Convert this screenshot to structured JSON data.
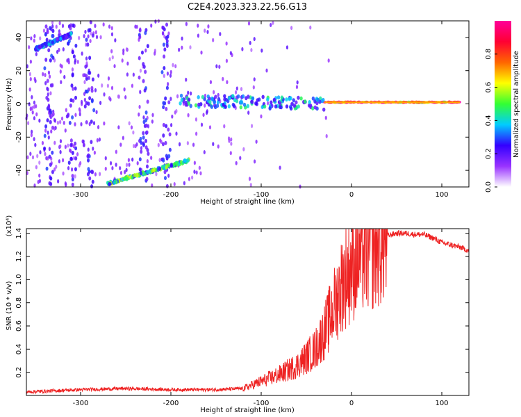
{
  "title": "C2E4.2023.323.22.56.G13",
  "chart_data": [
    {
      "type": "heatmap",
      "title": "C2E4.2023.323.22.56.G13",
      "xlabel": "Height of straight line (km)",
      "ylabel": "Frequency (Hz)",
      "xlim": [
        -360,
        130
      ],
      "ylim": [
        -50,
        50
      ],
      "x_ticks": [
        -300,
        -200,
        -100,
        0,
        100
      ],
      "y_ticks": [
        -40,
        -20,
        0,
        20,
        40
      ],
      "colorbar": {
        "label": "Normalized spectral amplitude",
        "range": [
          0.0,
          1.0
        ],
        "ticks": [
          0.0,
          0.2,
          0.4,
          0.6,
          0.8
        ],
        "colors": [
          "#ffffff",
          "#9933ff",
          "#3300ff",
          "#00ccff",
          "#33ff33",
          "#ffff00",
          "#ff6600",
          "#ff0033",
          "#ff0099"
        ]
      },
      "features": [
        {
          "name": "carrier",
          "x": [
            -30,
            120
          ],
          "y": [
            1,
            1
          ],
          "amplitude": 0.9
        },
        {
          "name": "doppler_band",
          "x": [
            -190,
            -30
          ],
          "y": [
            2,
            0
          ],
          "amplitude": 0.35
        },
        {
          "name": "descending_trace",
          "x": [
            -270,
            -180
          ],
          "y": [
            -48,
            -34
          ],
          "amplitude": 0.45
        },
        {
          "name": "upper_trace",
          "x": [
            -350,
            -310
          ],
          "y": [
            33,
            42
          ],
          "amplitude": 0.3
        }
      ]
    },
    {
      "type": "line",
      "xlabel": "Height of straight line (km)",
      "ylabel": "SNR (10 * v/v)",
      "y_multiplier": "(x10⁴)",
      "xlim": [
        -360,
        130
      ],
      "ylim": [
        0,
        14400
      ],
      "x_ticks": [
        -300,
        -200,
        -100,
        0,
        100
      ],
      "y_ticks": [
        2000,
        4000,
        6000,
        8000,
        10000,
        12000,
        14000
      ],
      "y_tick_labels": [
        "0.2",
        "0.4",
        "0.6",
        "0.8",
        "1.0",
        "1.2",
        "1.4"
      ],
      "color": "#ee2222",
      "series": [
        {
          "x": [
            -360,
            -300,
            -250,
            -200,
            -150,
            -120,
            -100,
            -80,
            -60,
            -40,
            -30,
            -20,
            -10,
            0,
            10,
            20,
            30,
            40,
            50,
            60,
            70,
            80,
            90,
            100,
            110,
            120,
            130
          ],
          "values": [
            300,
            500,
            600,
            500,
            500,
            600,
            1200,
            1800,
            2600,
            4000,
            5500,
            7500,
            9800,
            11200,
            12300,
            12800,
            13400,
            13800,
            14000,
            14000,
            13900,
            13900,
            13600,
            13200,
            13000,
            12800,
            12500
          ]
        }
      ]
    }
  ]
}
